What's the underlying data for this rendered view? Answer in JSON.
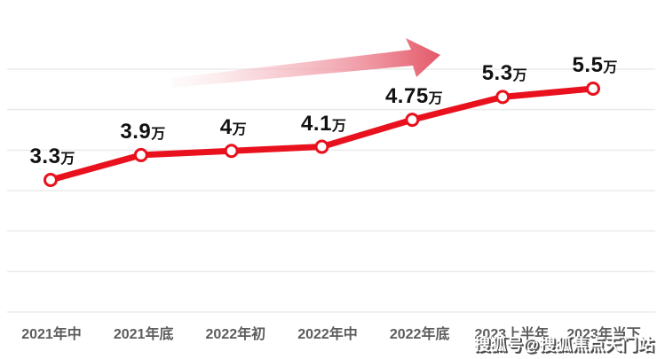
{
  "chart_data": {
    "type": "line",
    "title": "",
    "categories": [
      "2021年中",
      "2021年底",
      "2022年初",
      "2022年中",
      "2022年底",
      "2023上半年",
      "2023年当下"
    ],
    "values": [
      3.3,
      3.9,
      4,
      4.1,
      4.75,
      5.3,
      5.5
    ],
    "point_labels": [
      "3.3",
      "3.9",
      "4",
      "4.1",
      "4.75",
      "5.3",
      "5.5"
    ],
    "unit_suffix": "万",
    "ylim": [
      3.3,
      5.5
    ],
    "grid": "horizontal",
    "legend": "none",
    "marker": "open-circle",
    "annotations": [
      "upward-trend-arrow"
    ]
  },
  "colors": {
    "line": "#e8111d",
    "marker_fill": "#ffffff",
    "grid": "#ebebeb",
    "value_label": "#111111",
    "axis_label": "#5c5c5c",
    "arrow_tail": "#fdf0f1",
    "arrow_mid": "#f3aab3",
    "arrow_head": "#e25060"
  },
  "watermark": {
    "text": "搜狐号@搜狐焦点天门站"
  }
}
